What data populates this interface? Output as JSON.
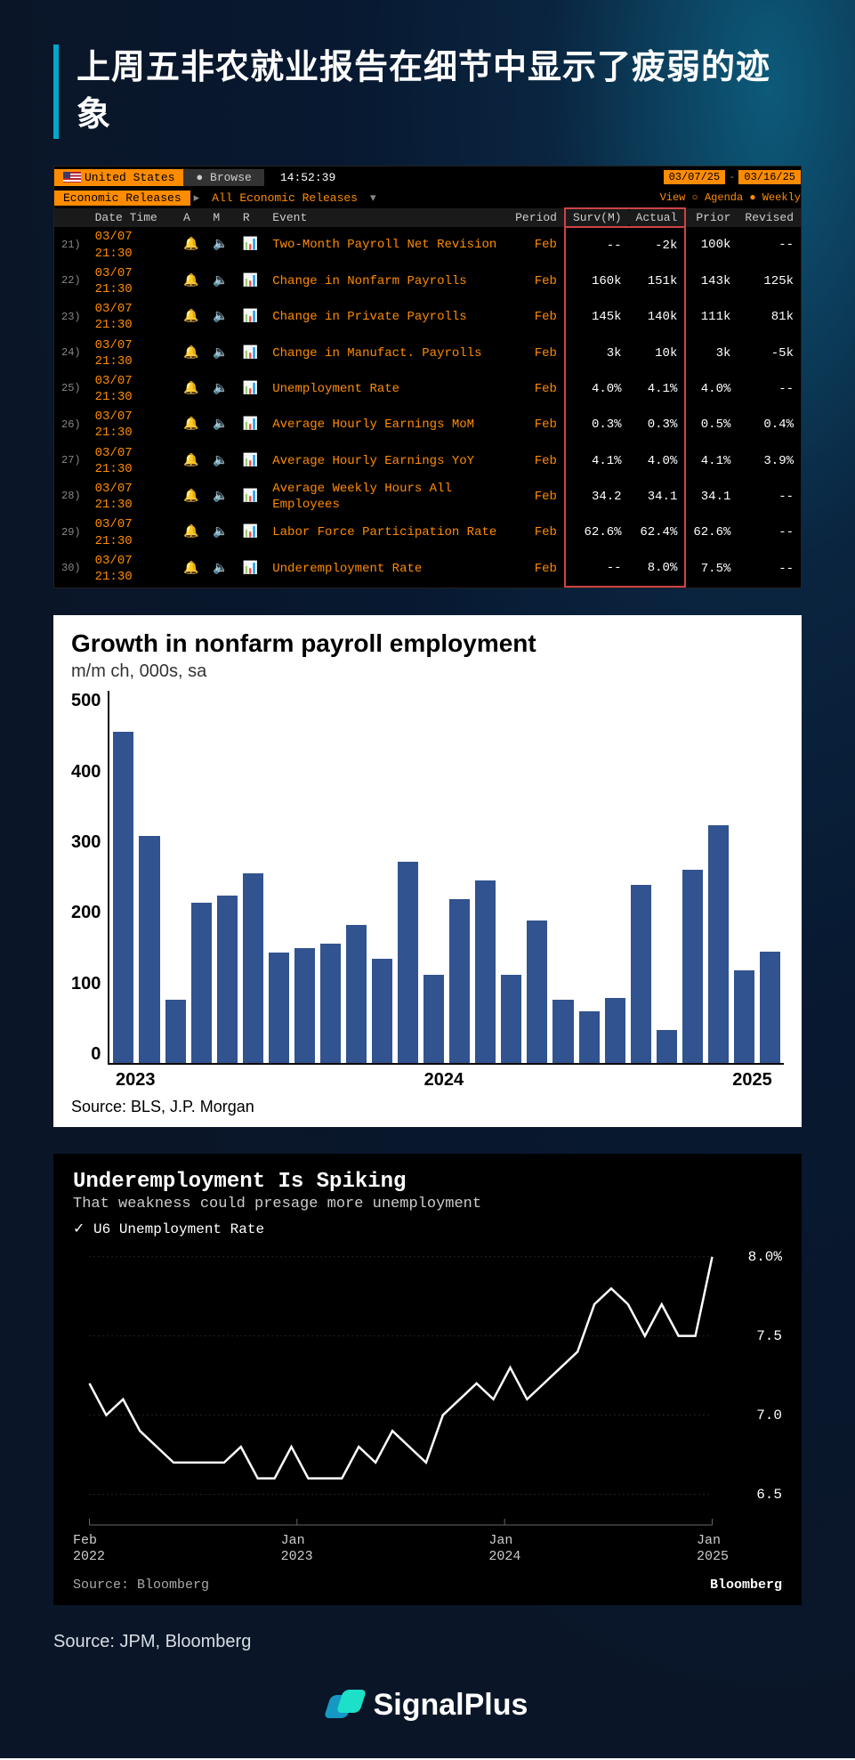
{
  "page": {
    "title": "上周五非农就业报告在细节中显示了疲弱的迹象",
    "source_footer": "Source: JPM, Bloomberg",
    "brand": "SignalPlus"
  },
  "terminal": {
    "country": "United States",
    "browse": "Browse",
    "time": "14:52:39",
    "date_from": "03/07/25",
    "date_to": "03/16/25",
    "tab1": "Economic Releases",
    "tab2": "All Economic Releases",
    "view_label": "View ○ Agenda ● Weekly",
    "columns": [
      "Date Time",
      "A",
      "M",
      "R",
      "Event",
      "Period",
      "Surv(M)",
      "Actual",
      "Prior",
      "Revised"
    ],
    "highlight_cols": [
      "Surv(M)",
      "Actual"
    ],
    "rows": [
      {
        "idx": "21)",
        "dt": "03/07 21:30",
        "event": "Two-Month Payroll Net Revision",
        "period": "Feb",
        "surv": "--",
        "actual": "-2k",
        "prior": "100k",
        "rev": "--"
      },
      {
        "idx": "22)",
        "dt": "03/07 21:30",
        "event": "Change in Nonfarm Payrolls",
        "period": "Feb",
        "surv": "160k",
        "actual": "151k",
        "prior": "143k",
        "rev": "125k"
      },
      {
        "idx": "23)",
        "dt": "03/07 21:30",
        "event": "Change in Private Payrolls",
        "period": "Feb",
        "surv": "145k",
        "actual": "140k",
        "prior": "111k",
        "rev": "81k"
      },
      {
        "idx": "24)",
        "dt": "03/07 21:30",
        "event": "Change in Manufact. Payrolls",
        "period": "Feb",
        "surv": "3k",
        "actual": "10k",
        "prior": "3k",
        "rev": "-5k"
      },
      {
        "idx": "25)",
        "dt": "03/07 21:30",
        "event": "Unemployment Rate",
        "period": "Feb",
        "surv": "4.0%",
        "actual": "4.1%",
        "prior": "4.0%",
        "rev": "--"
      },
      {
        "idx": "26)",
        "dt": "03/07 21:30",
        "event": "Average Hourly Earnings MoM",
        "period": "Feb",
        "surv": "0.3%",
        "actual": "0.3%",
        "prior": "0.5%",
        "rev": "0.4%"
      },
      {
        "idx": "27)",
        "dt": "03/07 21:30",
        "event": "Average Hourly Earnings YoY",
        "period": "Feb",
        "surv": "4.1%",
        "actual": "4.0%",
        "prior": "4.1%",
        "rev": "3.9%"
      },
      {
        "idx": "28)",
        "dt": "03/07 21:30",
        "event": "Average Weekly Hours All Employees",
        "period": "Feb",
        "surv": "34.2",
        "actual": "34.1",
        "prior": "34.1",
        "rev": "--"
      },
      {
        "idx": "29)",
        "dt": "03/07 21:30",
        "event": "Labor Force Participation Rate",
        "period": "Feb",
        "surv": "62.6%",
        "actual": "62.4%",
        "prior": "62.6%",
        "rev": "--"
      },
      {
        "idx": "30)",
        "dt": "03/07 21:30",
        "event": "Underemployment Rate",
        "period": "Feb",
        "surv": "--",
        "actual": "8.0%",
        "prior": "7.5%",
        "rev": "--"
      }
    ],
    "colors": {
      "bg": "#000000",
      "accent": "#ff8c00",
      "text": "#ff8c00",
      "header": "#cccccc",
      "highlight_border": "#cc4444"
    }
  },
  "bar_chart": {
    "type": "bar",
    "title": "Growth in nonfarm payroll employment",
    "subtitle": "m/m ch, 000s, sa",
    "source": "Source: BLS, J.P. Morgan",
    "ylim": [
      0,
      500
    ],
    "ytick_step": 100,
    "yticks": [
      "500",
      "400",
      "300",
      "200",
      "100",
      "0"
    ],
    "xticks": [
      {
        "label": "2023",
        "pos": 0
      },
      {
        "label": "2024",
        "pos": 12
      },
      {
        "label": "2025",
        "pos": 24
      }
    ],
    "values": [
      445,
      305,
      85,
      215,
      225,
      255,
      148,
      155,
      160,
      185,
      140,
      270,
      118,
      220,
      245,
      118,
      192,
      85,
      70,
      88,
      240,
      45,
      260,
      320,
      125,
      150
    ],
    "bar_color": "#31538f",
    "background_color": "#ffffff",
    "axis_color": "#000000",
    "title_fontsize": 28,
    "label_fontsize": 20
  },
  "line_chart": {
    "type": "line",
    "title": "Underemployment Is Spiking",
    "subtitle": "That weakness could presage more unemployment",
    "legend": "✓ U6 Unemployment Rate",
    "source": "Source: Bloomberg",
    "brand": "Bloomberg",
    "ylim": [
      6.3,
      8.1
    ],
    "yticks": [
      {
        "v": 8.0,
        "label": "8.0%"
      },
      {
        "v": 7.5,
        "label": "7.5"
      },
      {
        "v": 7.0,
        "label": "7.0"
      },
      {
        "v": 6.5,
        "label": "6.5"
      }
    ],
    "xticks": [
      "Feb\n2022",
      "Jan\n2023",
      "Jan\n2024",
      "Jan\n2025"
    ],
    "points": [
      7.2,
      7.0,
      7.1,
      6.9,
      6.8,
      6.7,
      6.7,
      6.7,
      6.7,
      6.8,
      6.6,
      6.6,
      6.8,
      6.6,
      6.6,
      6.6,
      6.8,
      6.7,
      6.9,
      6.8,
      6.7,
      7.0,
      7.1,
      7.2,
      7.1,
      7.3,
      7.1,
      7.2,
      7.3,
      7.4,
      7.7,
      7.8,
      7.7,
      7.5,
      7.7,
      7.5,
      7.5,
      8.0
    ],
    "line_color": "#ffffff",
    "background_color": "#000000",
    "grid_color": "#444444",
    "title_fontsize": 24
  }
}
